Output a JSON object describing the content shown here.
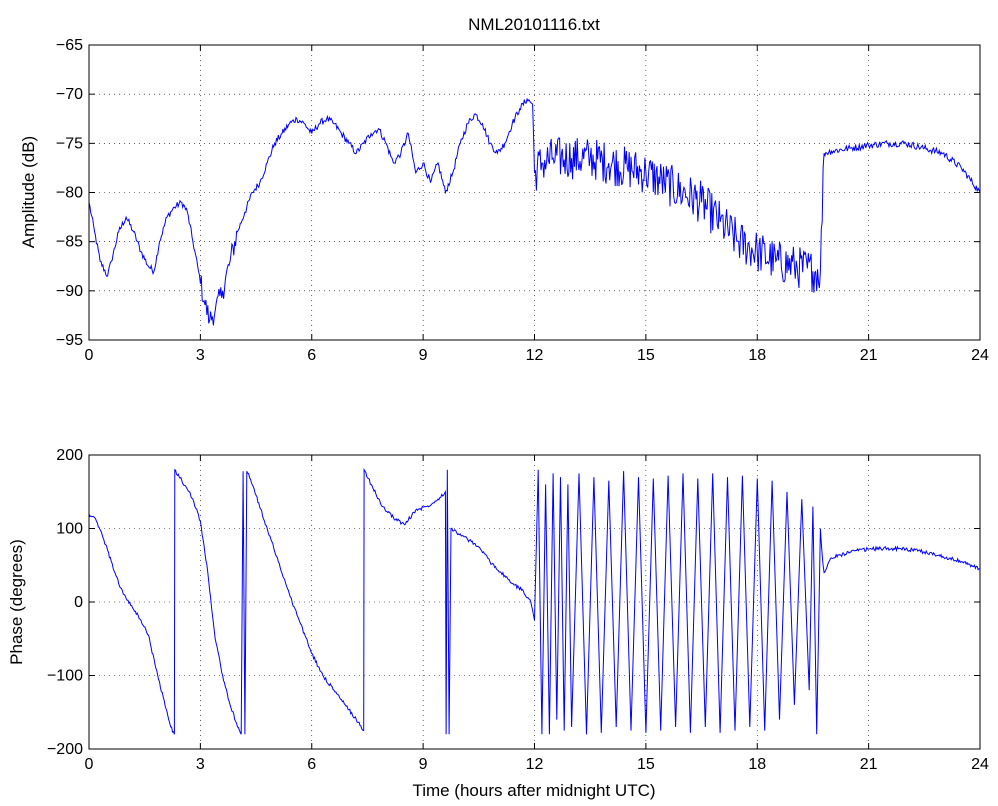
{
  "chart_data": [
    {
      "type": "line",
      "title": "NML20101116.txt",
      "xlabel": "",
      "ylabel": "Amplitude (dB)",
      "xlim": [
        0,
        24
      ],
      "ylim": [
        -95,
        -65
      ],
      "xticks": [
        0,
        3,
        6,
        9,
        12,
        15,
        18,
        21,
        24
      ],
      "yticks": [
        -95,
        -90,
        -85,
        -80,
        -75,
        -70,
        -65
      ],
      "grid": true,
      "line_color": "#0000ff",
      "series": [
        {
          "x": [
            0,
            0.15,
            0.3,
            0.5,
            0.6,
            0.8,
            1.0,
            1.2,
            1.4,
            1.6,
            1.75,
            1.9,
            2.1,
            2.3,
            2.5,
            2.65,
            2.8,
            2.95,
            3.1,
            3.25,
            3.4,
            3.6,
            3.8,
            4.0,
            4.2,
            4.4,
            4.6,
            4.8,
            5.0,
            5.2,
            5.4,
            5.6,
            5.8,
            6.0,
            6.2,
            6.4,
            6.6,
            6.8,
            7.0,
            7.2,
            7.4,
            7.6,
            7.8,
            8.0,
            8.2,
            8.4,
            8.6,
            8.8,
            9.0,
            9.2,
            9.4,
            9.6,
            9.8,
            10.0,
            10.2,
            10.4,
            10.6,
            10.8,
            11.0,
            11.2,
            11.4,
            11.6,
            11.8,
            11.95,
            12.0,
            12.2,
            12.5,
            13.0,
            13.5,
            14.0,
            14.5,
            15.0,
            15.5,
            16.0,
            16.5,
            17.0,
            17.5,
            18.0,
            18.5,
            19.0,
            19.5,
            19.7,
            19.8,
            20.0,
            20.5,
            21.0,
            21.5,
            22.0,
            22.5,
            23.0,
            23.5,
            24.0
          ],
          "y": [
            -81,
            -84,
            -87,
            -88.5,
            -87,
            -84,
            -82.5,
            -84,
            -86,
            -87.5,
            -88,
            -85,
            -82.5,
            -81.5,
            -81,
            -82,
            -85,
            -88,
            -91,
            -93,
            -92,
            -90,
            -87,
            -84,
            -82,
            -80,
            -79,
            -77,
            -75,
            -74,
            -73,
            -72.5,
            -73,
            -74,
            -73,
            -72.5,
            -73,
            -74,
            -75,
            -76,
            -75,
            -74,
            -73.5,
            -75,
            -77,
            -76,
            -74,
            -78,
            -77,
            -79,
            -77,
            -80,
            -78,
            -75,
            -73,
            -72,
            -73,
            -75,
            -76,
            -75,
            -73,
            -71.5,
            -70.5,
            -71,
            -78,
            -77,
            -76.5,
            -76.5,
            -76.5,
            -77,
            -77.5,
            -78,
            -79,
            -80,
            -81,
            -83,
            -85,
            -86,
            -87,
            -87.5,
            -88,
            -88,
            -76,
            -75.8,
            -75.5,
            -75.2,
            -75,
            -75,
            -75.5,
            -76,
            -77.5,
            -80
          ]
        }
      ]
    },
    {
      "type": "line",
      "title": "",
      "xlabel": "Time (hours after midnight UTC)",
      "ylabel": "Phase (degrees)",
      "xlim": [
        0,
        24
      ],
      "ylim": [
        -200,
        200
      ],
      "xticks": [
        0,
        3,
        6,
        9,
        12,
        15,
        18,
        21,
        24
      ],
      "yticks": [
        -200,
        -100,
        0,
        100,
        200
      ],
      "grid": true,
      "line_color": "#0000ff",
      "series": [
        {
          "x": [
            0,
            0.2,
            0.4,
            0.6,
            0.8,
            1.0,
            1.2,
            1.4,
            1.6,
            1.8,
            2.0,
            2.2,
            2.3,
            2.31,
            2.5,
            2.8,
            3.0,
            3.2,
            3.4,
            3.6,
            3.8,
            4.0,
            4.1,
            4.15,
            4.2,
            4.25,
            4.3,
            4.5,
            4.8,
            5.1,
            5.4,
            5.7,
            6.0,
            6.3,
            6.6,
            6.9,
            7.2,
            7.4,
            7.41,
            7.6,
            7.9,
            8.2,
            8.5,
            8.8,
            9.1,
            9.4,
            9.6,
            9.62,
            9.65,
            9.7,
            9.75,
            9.9,
            10.2,
            10.5,
            10.8,
            11.1,
            11.4,
            11.7,
            11.9,
            12.0,
            12.1,
            12.2,
            12.3,
            12.4,
            12.5,
            12.6,
            12.7,
            12.8,
            12.9,
            13.0,
            13.2,
            13.4,
            13.6,
            13.8,
            14.0,
            14.2,
            14.4,
            14.6,
            14.8,
            15.0,
            15.2,
            15.4,
            15.6,
            15.8,
            16.0,
            16.2,
            16.4,
            16.6,
            16.8,
            17.0,
            17.2,
            17.4,
            17.6,
            17.8,
            18.0,
            18.2,
            18.4,
            18.6,
            18.8,
            19.0,
            19.2,
            19.4,
            19.5,
            19.6,
            19.7,
            19.8,
            20.0,
            20.5,
            21.0,
            21.5,
            22.0,
            22.5,
            23.0,
            23.5,
            24.0
          ],
          "y": [
            120,
            110,
            85,
            55,
            25,
            5,
            -10,
            -25,
            -45,
            -90,
            -130,
            -170,
            -180,
            180,
            165,
            140,
            110,
            40,
            -50,
            -100,
            -140,
            -170,
            -180,
            178,
            -180,
            178,
            175,
            145,
            100,
            55,
            10,
            -30,
            -70,
            -100,
            -120,
            -140,
            -160,
            -175,
            180,
            160,
            130,
            115,
            105,
            125,
            130,
            140,
            150,
            -180,
            180,
            -180,
            100,
            95,
            85,
            75,
            55,
            40,
            25,
            15,
            0,
            -25,
            180,
            -180,
            160,
            -180,
            175,
            -160,
            170,
            -175,
            160,
            -170,
            175,
            -180,
            170,
            -178,
            165,
            -170,
            178,
            -175,
            170,
            -178,
            168,
            -175,
            172,
            -170,
            175,
            -178,
            168,
            -170,
            175,
            -178,
            170,
            -175,
            172,
            -170,
            168,
            -175,
            165,
            -160,
            150,
            -140,
            140,
            -120,
            130,
            -180,
            100,
            40,
            60,
            68,
            72,
            73,
            72,
            68,
            62,
            55,
            45
          ]
        }
      ]
    }
  ]
}
